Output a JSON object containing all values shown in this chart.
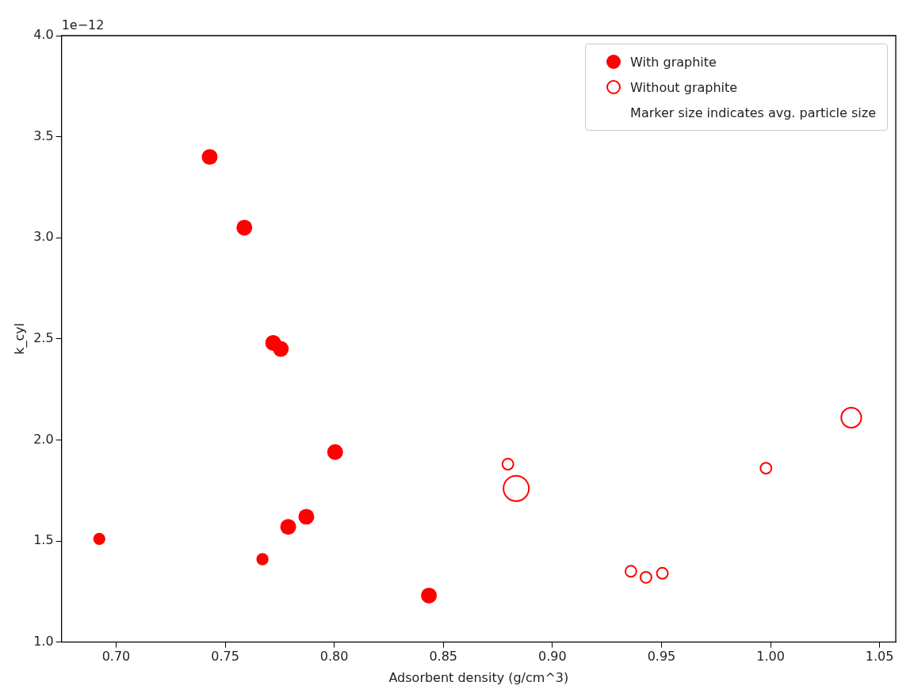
{
  "chart_data": {
    "type": "bubble",
    "xlabel": "Adsorbent density (g/cm^3)",
    "ylabel": "k_cyl",
    "xlim": [
      0.675,
      1.0574
    ],
    "xticks": [
      {
        "value": 0.7,
        "label": "0.70"
      },
      {
        "value": 0.75,
        "label": "0.75"
      },
      {
        "value": 0.8,
        "label": "0.80"
      },
      {
        "value": 0.85,
        "label": "0.85"
      },
      {
        "value": 0.9,
        "label": "0.90"
      },
      {
        "value": 0.95,
        "label": "0.95"
      },
      {
        "value": 1.0,
        "label": "1.00"
      },
      {
        "value": 1.05,
        "label": "1.05"
      }
    ],
    "ylim": [
      1,
      4
    ],
    "yticks": [
      {
        "value": 1,
        "label": "1.0"
      },
      1.5,
      {
        "value": 2,
        "label": "2.0"
      },
      2.5,
      {
        "value": 3,
        "label": "3.0"
      },
      3.5,
      {
        "value": 4,
        "label": "4.0"
      }
    ],
    "annotations": [
      "1e−12",
      "Marker size indicates avg. particle size"
    ],
    "legend": "top right",
    "grid": false,
    "marker": "circle",
    "series": [
      {
        "name": "With graphite",
        "color": "#ff0000",
        "x": [
          0.6923,
          0.7671,
          0.7789,
          0.7872,
          0.8004,
          0.8434,
          0.7429,
          0.7588,
          0.772,
          0.7755
        ],
        "values": [
          1.51,
          1.41,
          1.57,
          1.62,
          1.94,
          1.23,
          3.4,
          3.05,
          2.48,
          2.45
        ],
        "sizes": [
          0.23,
          0.23,
          0.39,
          0.39,
          0.39,
          0.39,
          0.39,
          0.39,
          0.39,
          0.39
        ]
      },
      {
        "name": "Without graphite",
        "color": "#ff0000",
        "marker": "open circle",
        "x": [
          0.8796,
          0.8834,
          0.936,
          0.9429,
          0.9504,
          0.9979,
          1.037
        ],
        "values": [
          1.88,
          1.76,
          1.35,
          1.32,
          1.34,
          1.86,
          2.11
        ],
        "sizes": [
          0.19,
          1,
          0.19,
          0.19,
          0.19,
          0.19,
          0.62
        ]
      }
    ]
  }
}
